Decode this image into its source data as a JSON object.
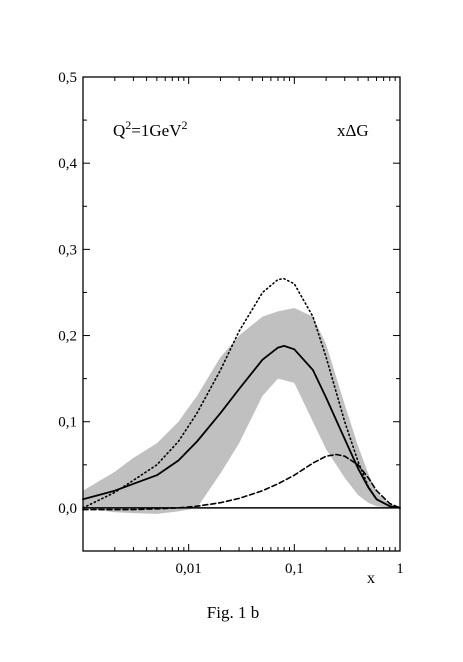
{
  "chart_data": {
    "type": "line",
    "x_scale": "log",
    "xlim": [
      0.001,
      1
    ],
    "ylim": [
      -0.05,
      0.5
    ],
    "xlabel": "x",
    "ylabel": "",
    "caption": "Fig. 1 b",
    "x_ticks": [
      {
        "value": 0.01,
        "label": "0,01"
      },
      {
        "value": 0.1,
        "label": "0,1"
      },
      {
        "value": 1,
        "label": "1"
      }
    ],
    "y_ticks": [
      {
        "value": 0.0,
        "label": "0,0"
      },
      {
        "value": 0.1,
        "label": "0,1"
      },
      {
        "value": 0.2,
        "label": "0,2"
      },
      {
        "value": 0.3,
        "label": "0,3"
      },
      {
        "value": 0.4,
        "label": "0,4"
      },
      {
        "value": 0.5,
        "label": "0,5"
      }
    ],
    "annotations": {
      "scale": {
        "base": "Q",
        "sup1": "2",
        "mid": "=1GeV",
        "sup2": "2"
      },
      "quantity": "xΔG"
    },
    "series": [
      {
        "style": "solid",
        "x": [
          0.001,
          0.002,
          0.003,
          0.005,
          0.008,
          0.012,
          0.02,
          0.03,
          0.05,
          0.07,
          0.08,
          0.1,
          0.15,
          0.2,
          0.3,
          0.4,
          0.5,
          0.6,
          0.8,
          1.0
        ],
        "y": [
          0.01,
          0.02,
          0.028,
          0.038,
          0.055,
          0.077,
          0.11,
          0.138,
          0.172,
          0.186,
          0.188,
          0.184,
          0.16,
          0.128,
          0.08,
          0.046,
          0.024,
          0.01,
          0.002,
          0.0
        ]
      },
      {
        "style": "dotted",
        "x": [
          0.001,
          0.002,
          0.003,
          0.005,
          0.008,
          0.012,
          0.02,
          0.03,
          0.05,
          0.07,
          0.08,
          0.1,
          0.15,
          0.2,
          0.3,
          0.4,
          0.5,
          0.6,
          0.8,
          1.0
        ],
        "y": [
          0.0,
          0.018,
          0.032,
          0.05,
          0.077,
          0.11,
          0.16,
          0.205,
          0.25,
          0.265,
          0.266,
          0.26,
          0.222,
          0.175,
          0.1,
          0.054,
          0.025,
          0.01,
          0.002,
          0.0
        ]
      },
      {
        "style": "dashed",
        "x": [
          0.001,
          0.003,
          0.005,
          0.008,
          0.012,
          0.02,
          0.03,
          0.05,
          0.07,
          0.1,
          0.15,
          0.2,
          0.25,
          0.3,
          0.4,
          0.5,
          0.6,
          0.8,
          1.0
        ],
        "y": [
          -0.002,
          -0.002,
          -0.001,
          0.0,
          0.002,
          0.006,
          0.011,
          0.02,
          0.028,
          0.038,
          0.052,
          0.06,
          0.062,
          0.06,
          0.05,
          0.035,
          0.02,
          0.005,
          0.0
        ]
      }
    ],
    "band": {
      "x": [
        0.001,
        0.002,
        0.003,
        0.005,
        0.008,
        0.012,
        0.02,
        0.03,
        0.05,
        0.07,
        0.1,
        0.15,
        0.2,
        0.3,
        0.4,
        0.5,
        0.6,
        0.8,
        1.0
      ],
      "upper": [
        0.02,
        0.042,
        0.058,
        0.075,
        0.1,
        0.13,
        0.175,
        0.2,
        0.222,
        0.228,
        0.232,
        0.222,
        0.19,
        0.12,
        0.072,
        0.04,
        0.018,
        0.004,
        0.0
      ],
      "lower": [
        0.0,
        -0.005,
        -0.006,
        -0.007,
        -0.004,
        0.0,
        0.04,
        0.075,
        0.13,
        0.15,
        0.145,
        0.1,
        0.068,
        0.035,
        0.015,
        0.006,
        0.002,
        0.0,
        0.0
      ]
    },
    "colors": {
      "band": "#c0c0c0",
      "lines": "#000000"
    }
  }
}
